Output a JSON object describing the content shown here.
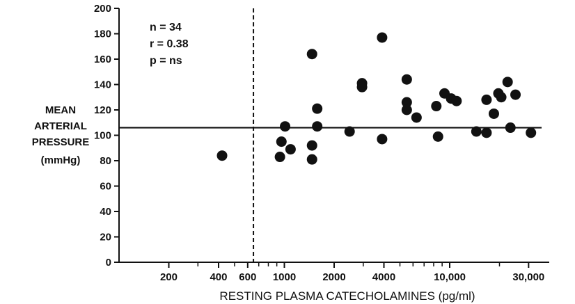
{
  "chart_data": {
    "type": "scatter",
    "title": "",
    "xlabel": "RESTING PLASMA CATECHOLAMINES (pg/ml)",
    "ylabel_lines": [
      "MEAN",
      "ARTERIAL",
      "PRESSURE",
      "(mmHg)"
    ],
    "x_scale": "log",
    "xlim": [
      100,
      40000
    ],
    "ylim": [
      0,
      200
    ],
    "x_ticks": [
      {
        "value": 200,
        "label": "200"
      },
      {
        "value": 400,
        "label": "400"
      },
      {
        "value": 600,
        "label": "600"
      },
      {
        "value": 1000,
        "label": "1000"
      },
      {
        "value": 2000,
        "label": "2000"
      },
      {
        "value": 4000,
        "label": "4000"
      },
      {
        "value": 10000,
        "label": "10,000"
      },
      {
        "value": 30000,
        "label": "30,000"
      }
    ],
    "x_minor_ticks": [
      300,
      500,
      700,
      800,
      900,
      3000,
      5000,
      6000,
      7000,
      8000,
      9000,
      20000
    ],
    "y_ticks": [
      {
        "value": 0,
        "label": "0"
      },
      {
        "value": 20,
        "label": "20"
      },
      {
        "value": 40,
        "label": "40"
      },
      {
        "value": 60,
        "label": "60"
      },
      {
        "value": 80,
        "label": "80"
      },
      {
        "value": 100,
        "label": "100"
      },
      {
        "value": 120,
        "label": "120"
      },
      {
        "value": 140,
        "label": "140"
      },
      {
        "value": 160,
        "label": "160"
      },
      {
        "value": 180,
        "label": "180"
      },
      {
        "value": 200,
        "label": "200"
      }
    ],
    "annotations": [
      "n = 34",
      "r = 0.38",
      "p = ns"
    ],
    "reference_lines": {
      "horizontal_y": 106,
      "vertical_x": 650
    },
    "grid": false,
    "points": [
      {
        "x": 420,
        "y": 84
      },
      {
        "x": 940,
        "y": 83
      },
      {
        "x": 960,
        "y": 95
      },
      {
        "x": 1010,
        "y": 107
      },
      {
        "x": 1090,
        "y": 89
      },
      {
        "x": 1470,
        "y": 164
      },
      {
        "x": 1470,
        "y": 92
      },
      {
        "x": 1470,
        "y": 81
      },
      {
        "x": 1580,
        "y": 121
      },
      {
        "x": 1580,
        "y": 107
      },
      {
        "x": 2480,
        "y": 103
      },
      {
        "x": 2950,
        "y": 141
      },
      {
        "x": 2950,
        "y": 138
      },
      {
        "x": 3900,
        "y": 177
      },
      {
        "x": 3900,
        "y": 97
      },
      {
        "x": 5500,
        "y": 144
      },
      {
        "x": 5500,
        "y": 126
      },
      {
        "x": 5500,
        "y": 120
      },
      {
        "x": 6300,
        "y": 114
      },
      {
        "x": 8300,
        "y": 123
      },
      {
        "x": 8500,
        "y": 99
      },
      {
        "x": 9300,
        "y": 133
      },
      {
        "x": 10200,
        "y": 129
      },
      {
        "x": 11000,
        "y": 127
      },
      {
        "x": 14500,
        "y": 103
      },
      {
        "x": 16700,
        "y": 128
      },
      {
        "x": 16700,
        "y": 102
      },
      {
        "x": 18500,
        "y": 117
      },
      {
        "x": 19700,
        "y": 133
      },
      {
        "x": 20500,
        "y": 130
      },
      {
        "x": 22400,
        "y": 142
      },
      {
        "x": 23300,
        "y": 106
      },
      {
        "x": 25000,
        "y": 132
      },
      {
        "x": 31000,
        "y": 102
      }
    ]
  }
}
